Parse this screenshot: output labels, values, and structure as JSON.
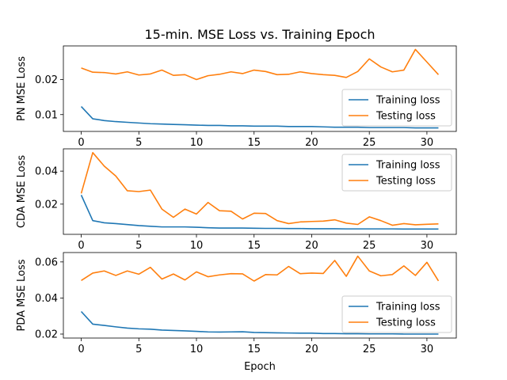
{
  "chart_data": {
    "type": "line",
    "title": "15-min. MSE Loss vs. Training Epoch",
    "xlabel": "Epoch",
    "colors": {
      "Training loss": "#1f77b4",
      "Testing loss": "#ff7f0e"
    },
    "panels": [
      {
        "ylabel": "PN MSE Loss",
        "xlim": [
          -1.55,
          32.55
        ],
        "ylim": [
          0.0052,
          0.0296
        ],
        "yticks": [
          0.01,
          0.02
        ],
        "ytick_labels": [
          "0.01",
          "0.02"
        ],
        "xticks": [
          0,
          5,
          10,
          15,
          20,
          25,
          30
        ],
        "xtick_labels": [
          "0",
          "5",
          "10",
          "15",
          "20",
          "25",
          "30"
        ],
        "legend_position": "lower-right",
        "series": [
          {
            "name": "Training loss",
            "color": "#1f77b4",
            "values": [
              0.0123,
              0.0088,
              0.0083,
              0.008,
              0.0078,
              0.0076,
              0.0074,
              0.0073,
              0.0072,
              0.0071,
              0.007,
              0.0069,
              0.0069,
              0.0068,
              0.0068,
              0.0067,
              0.0067,
              0.0067,
              0.0066,
              0.0066,
              0.0066,
              0.0065,
              0.0064,
              0.0064,
              0.0064,
              0.0063,
              0.0063,
              0.0063,
              0.0063,
              0.0062,
              0.0062,
              0.0062
            ]
          },
          {
            "name": "Testing loss",
            "color": "#ff7f0e",
            "values": [
              0.0233,
              0.0221,
              0.022,
              0.0216,
              0.0222,
              0.0213,
              0.0216,
              0.0227,
              0.0212,
              0.0214,
              0.02,
              0.0211,
              0.0215,
              0.0222,
              0.0217,
              0.0227,
              0.0223,
              0.0214,
              0.0215,
              0.0222,
              0.0217,
              0.0214,
              0.0212,
              0.0206,
              0.0223,
              0.0259,
              0.0236,
              0.0222,
              0.0227,
              0.0286,
              0.025,
              0.0214
            ]
          }
        ]
      },
      {
        "ylabel": "CDA MSE Loss",
        "xlim": [
          -1.55,
          32.55
        ],
        "ylim": [
          0.0017,
          0.0535
        ],
        "yticks": [
          0.02,
          0.04
        ],
        "ytick_labels": [
          "0.02",
          "0.04"
        ],
        "xticks": [
          0,
          5,
          10,
          15,
          20,
          25,
          30
        ],
        "xtick_labels": [
          "0",
          "5",
          "10",
          "15",
          "20",
          "25",
          "30"
        ],
        "legend_position": "upper-right",
        "series": [
          {
            "name": "Training loss",
            "color": "#1f77b4",
            "values": [
              0.0255,
              0.01,
              0.0087,
              0.0082,
              0.0076,
              0.007,
              0.0066,
              0.0062,
              0.0062,
              0.0062,
              0.006,
              0.0057,
              0.0055,
              0.0055,
              0.0055,
              0.0054,
              0.0053,
              0.0053,
              0.0052,
              0.0052,
              0.0051,
              0.0051,
              0.0051,
              0.005,
              0.005,
              0.005,
              0.005,
              0.005,
              0.0049,
              0.0049,
              0.0049,
              0.0049
            ]
          },
          {
            "name": "Testing loss",
            "color": "#ff7f0e",
            "values": [
              0.0265,
              0.0512,
              0.043,
              0.037,
              0.0281,
              0.0276,
              0.0285,
              0.017,
              0.012,
              0.017,
              0.014,
              0.021,
              0.016,
              0.0157,
              0.011,
              0.0145,
              0.0143,
              0.01,
              0.0082,
              0.0092,
              0.0095,
              0.0097,
              0.0105,
              0.0085,
              0.0077,
              0.0123,
              0.01,
              0.0072,
              0.0082,
              0.0075,
              0.0078,
              0.008
            ]
          }
        ]
      },
      {
        "ylabel": "PDA MSE Loss",
        "xlim": [
          -1.55,
          32.55
        ],
        "ylim": [
          0.0178,
          0.0652
        ],
        "yticks": [
          0.02,
          0.04,
          0.06
        ],
        "ytick_labels": [
          "0.02",
          "0.04",
          "0.06"
        ],
        "xticks": [
          0,
          5,
          10,
          15,
          20,
          25,
          30
        ],
        "xtick_labels": [
          "0",
          "5",
          "10",
          "15",
          "20",
          "25",
          "30"
        ],
        "legend_position": "lower-right",
        "series": [
          {
            "name": "Training loss",
            "color": "#1f77b4",
            "values": [
              0.0325,
              0.0255,
              0.0248,
              0.024,
              0.0233,
              0.0229,
              0.0227,
              0.0222,
              0.022,
              0.0218,
              0.0215,
              0.0212,
              0.0211,
              0.0212,
              0.0213,
              0.0209,
              0.0208,
              0.0207,
              0.0206,
              0.0205,
              0.0205,
              0.0203,
              0.0203,
              0.0202,
              0.0202,
              0.0201,
              0.0201,
              0.0201,
              0.02,
              0.02,
              0.02,
              0.02
            ]
          },
          {
            "name": "Testing loss",
            "color": "#ff7f0e",
            "values": [
              0.0497,
              0.0538,
              0.055,
              0.0525,
              0.055,
              0.0532,
              0.057,
              0.0505,
              0.0533,
              0.05,
              0.0545,
              0.0518,
              0.0528,
              0.0535,
              0.0534,
              0.0494,
              0.053,
              0.0528,
              0.0575,
              0.0535,
              0.0538,
              0.0536,
              0.0608,
              0.052,
              0.0632,
              0.055,
              0.0523,
              0.053,
              0.0578,
              0.0525,
              0.0598,
              0.0495
            ]
          }
        ]
      }
    ]
  }
}
